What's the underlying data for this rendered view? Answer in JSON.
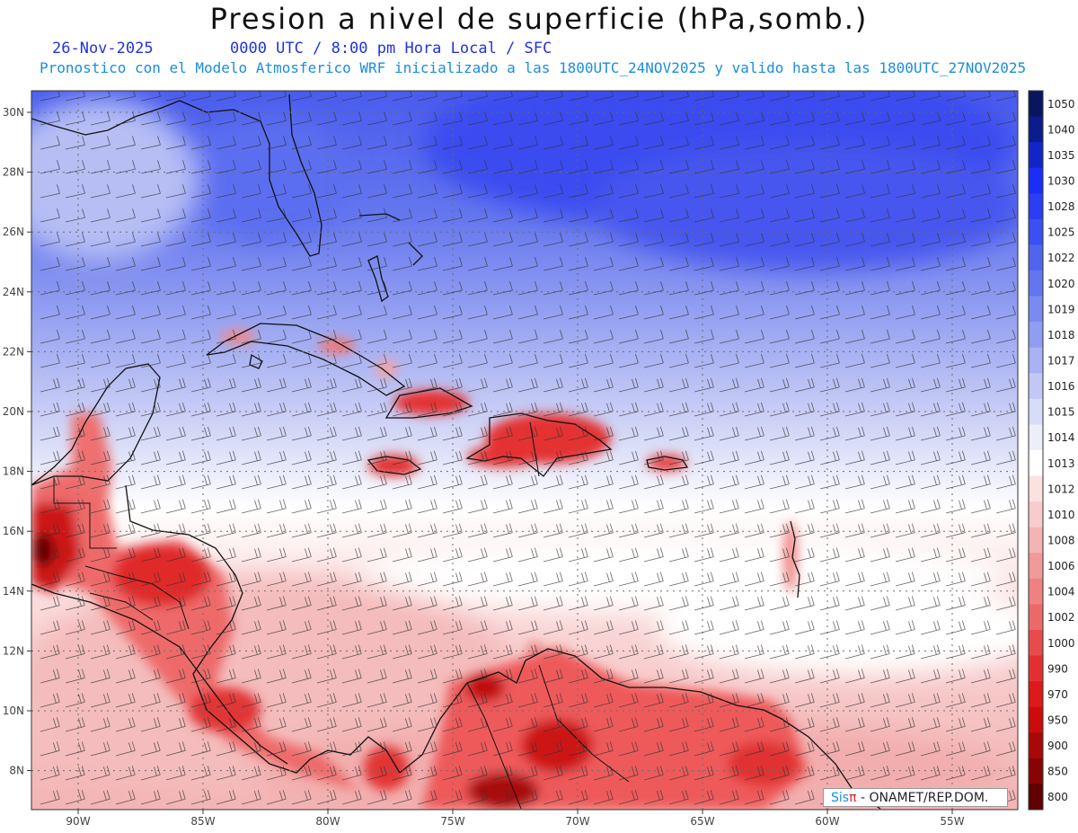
{
  "title": "Presion a nivel de superficie (hPa,somb.)",
  "date": "26-Nov-2025",
  "time_label": "0000 UTC / 8:00 pm Hora Local / SFC",
  "forecast_note": "Pronostico con el Modelo Atmosferico WRF inicializado a las 1800UTC_24NOV2025 y valido hasta las  1800UTC_27NOV2025",
  "credit": {
    "sis": "Sis",
    "pi": "π",
    "rest": "- ONAMET/REP.DOM."
  },
  "lat_labels": [
    "30N",
    "28N",
    "26N",
    "24N",
    "22N",
    "20N",
    "18N",
    "16N",
    "14N",
    "12N",
    "10N",
    "8N"
  ],
  "lon_labels": [
    "90W",
    "85W",
    "80W",
    "75W",
    "70W",
    "65W",
    "60W",
    "55W"
  ],
  "colorbar": {
    "levels": [
      "1050",
      "1040",
      "1035",
      "1030",
      "1028",
      "1025",
      "1022",
      "1020",
      "1019",
      "1018",
      "1017",
      "1016",
      "1015",
      "1014",
      "1013",
      "1012",
      "1010",
      "1008",
      "1006",
      "1004",
      "1002",
      "1000",
      "990",
      "970",
      "950",
      "900",
      "850",
      "800"
    ],
    "colors": [
      "#0a1560",
      "#0c1c8c",
      "#1226c8",
      "#1a2ef8",
      "#2a3ef4",
      "#3a50f0",
      "#5064ee",
      "#6476ee",
      "#7a8af0",
      "#909ef2",
      "#a8b2f4",
      "#c2c8f6",
      "#d8dcf8",
      "#eceef9",
      "#ffffff",
      "#fbe2e2",
      "#f8cccc",
      "#f4b4b4",
      "#f09a9a",
      "#ee8282",
      "#ea6a6a",
      "#e64c4c",
      "#e23030",
      "#dc1a1a",
      "#cc0c0c",
      "#a80808",
      "#880404",
      "#600000"
    ]
  }
}
